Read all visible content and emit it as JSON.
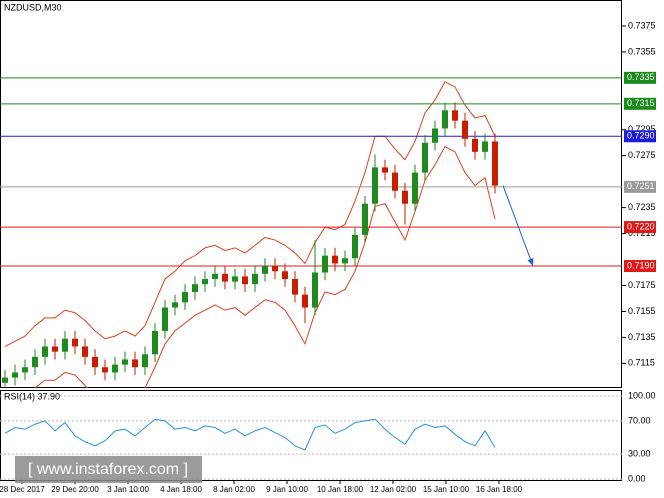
{
  "header": {
    "watermark": "[  www.instaforex.com  ]"
  },
  "chart_data": [
    {
      "type": "candlestick",
      "title": "NZDUSD,M30",
      "x_labels": [
        "28 Dec 2017",
        "29 Dec 20:00",
        "3 Jan 10:00",
        "4 Jan 18:00",
        "8 Jan 02:00",
        "9 Jan 10:00",
        "10 Jan 18:00",
        "12 Jan 02:00",
        "15 Jan 10:00",
        "16 Jan 18:00"
      ],
      "open": [
        0.71,
        0.7104,
        0.7108,
        0.7112,
        0.712,
        0.7128,
        0.7124,
        0.7134,
        0.7128,
        0.712,
        0.7112,
        0.7108,
        0.7114,
        0.7118,
        0.7112,
        0.7122,
        0.714,
        0.7158,
        0.7162,
        0.717,
        0.7176,
        0.718,
        0.7184,
        0.7178,
        0.7182,
        0.7176,
        0.7184,
        0.719,
        0.7186,
        0.718,
        0.7168,
        0.7158,
        0.7185,
        0.7198,
        0.7192,
        0.7196,
        0.7214,
        0.7238,
        0.7266,
        0.7262,
        0.7248,
        0.7238,
        0.7262,
        0.7285,
        0.7296,
        0.731,
        0.7302,
        0.7288,
        0.7278,
        0.7286
      ],
      "high": [
        0.711,
        0.7114,
        0.7118,
        0.7126,
        0.7134,
        0.7134,
        0.714,
        0.714,
        0.7134,
        0.7126,
        0.7118,
        0.712,
        0.7124,
        0.7124,
        0.7128,
        0.7146,
        0.7164,
        0.7168,
        0.7176,
        0.7182,
        0.7186,
        0.719,
        0.719,
        0.7188,
        0.7188,
        0.719,
        0.7196,
        0.7196,
        0.7192,
        0.7186,
        0.7174,
        0.721,
        0.7204,
        0.7204,
        0.7202,
        0.722,
        0.7244,
        0.7276,
        0.7272,
        0.7268,
        0.7254,
        0.7268,
        0.7291,
        0.7302,
        0.7316,
        0.7316,
        0.7308,
        0.7294,
        0.7292,
        0.7292
      ],
      "low": [
        0.7097,
        0.7098,
        0.7102,
        0.7106,
        0.7114,
        0.7118,
        0.7118,
        0.7122,
        0.7114,
        0.7106,
        0.7102,
        0.7102,
        0.7108,
        0.7106,
        0.7106,
        0.7116,
        0.7134,
        0.7152,
        0.7156,
        0.7164,
        0.717,
        0.7174,
        0.7172,
        0.7172,
        0.717,
        0.717,
        0.7178,
        0.718,
        0.7174,
        0.7162,
        0.7146,
        0.7152,
        0.7179,
        0.7186,
        0.7186,
        0.719,
        0.7208,
        0.7232,
        0.7256,
        0.7242,
        0.7222,
        0.7232,
        0.7256,
        0.7279,
        0.729,
        0.7296,
        0.7282,
        0.7272,
        0.7272,
        0.7246
      ],
      "close": [
        0.7104,
        0.7108,
        0.7112,
        0.712,
        0.7128,
        0.7124,
        0.7134,
        0.7128,
        0.712,
        0.7112,
        0.7108,
        0.7114,
        0.7118,
        0.7112,
        0.7122,
        0.714,
        0.7158,
        0.7162,
        0.717,
        0.7176,
        0.718,
        0.7184,
        0.7178,
        0.7182,
        0.7176,
        0.7184,
        0.719,
        0.7186,
        0.718,
        0.7168,
        0.7158,
        0.7185,
        0.7198,
        0.7192,
        0.7196,
        0.7214,
        0.7238,
        0.7266,
        0.7262,
        0.7248,
        0.7238,
        0.7262,
        0.7285,
        0.7296,
        0.731,
        0.7302,
        0.7288,
        0.7278,
        0.7286,
        0.7252
      ],
      "colors": {
        "up": "#1f8a1f",
        "down": "#c81e00"
      },
      "bands": {
        "color": "#e0401a",
        "upper": [
          0.7128,
          0.7132,
          0.7136,
          0.7144,
          0.715,
          0.715,
          0.7156,
          0.7154,
          0.7148,
          0.714,
          0.7134,
          0.7136,
          0.714,
          0.7136,
          0.7144,
          0.7162,
          0.718,
          0.7186,
          0.7194,
          0.7198,
          0.7204,
          0.7206,
          0.7202,
          0.7204,
          0.72,
          0.7206,
          0.7212,
          0.721,
          0.7206,
          0.72,
          0.7192,
          0.7208,
          0.722,
          0.7218,
          0.7222,
          0.724,
          0.7262,
          0.729,
          0.729,
          0.728,
          0.7272,
          0.7286,
          0.7308,
          0.7318,
          0.7332,
          0.7328,
          0.7314,
          0.7304,
          0.7306,
          0.729
        ],
        "lower": [
          0.708,
          0.7084,
          0.7088,
          0.7096,
          0.7102,
          0.7102,
          0.7108,
          0.7106,
          0.7098,
          0.709,
          0.7086,
          0.709,
          0.7094,
          0.709,
          0.7096,
          0.7112,
          0.713,
          0.714,
          0.7146,
          0.7152,
          0.7156,
          0.716,
          0.7156,
          0.7158,
          0.7152,
          0.7158,
          0.7164,
          0.7162,
          0.7156,
          0.7144,
          0.713,
          0.7154,
          0.717,
          0.7168,
          0.7172,
          0.7186,
          0.7208,
          0.7236,
          0.7238,
          0.7224,
          0.721,
          0.7232,
          0.7256,
          0.7268,
          0.7282,
          0.7278,
          0.7262,
          0.7252,
          0.7258,
          0.7226
        ]
      },
      "ylim": [
        0.7096,
        0.7395
      ],
      "yticks": [
        0.7375,
        0.7355,
        0.7295,
        0.7275,
        0.7235,
        0.7215,
        0.7175,
        0.7155,
        0.7135,
        0.7115
      ],
      "levels": [
        {
          "value": 0.7335,
          "label": "0.7335",
          "color": "#1a8a1a"
        },
        {
          "value": 0.7315,
          "label": "0.7315",
          "color": "#1a8a1a"
        },
        {
          "value": 0.729,
          "label": "0.7290",
          "color": "#1c1cd8"
        },
        {
          "value": 0.7251,
          "label": "0.7251",
          "color": "#9a9a9a"
        },
        {
          "value": 0.722,
          "label": "0.7220",
          "color": "#e01818"
        },
        {
          "value": 0.719,
          "label": "0.7190",
          "color": "#e01818"
        }
      ],
      "forecast_color": "#1c5fd8"
    },
    {
      "type": "line",
      "title": "RSI(14) 37.90",
      "color": "#2a8fe8",
      "values": [
        55,
        62,
        60,
        66,
        70,
        58,
        68,
        52,
        45,
        40,
        46,
        58,
        60,
        52,
        62,
        72,
        70,
        60,
        62,
        58,
        64,
        62,
        55,
        60,
        52,
        58,
        62,
        56,
        50,
        40,
        35,
        62,
        65,
        55,
        60,
        68,
        70,
        72,
        60,
        50,
        42,
        60,
        66,
        62,
        64,
        54,
        45,
        40,
        58,
        37.9
      ],
      "ylim": [
        0,
        100
      ],
      "yticks": [
        {
          "value": 100,
          "label": "100.00"
        },
        {
          "value": 70,
          "label": "70.00"
        },
        {
          "value": 30,
          "label": "30.00"
        },
        {
          "value": 0,
          "label": "0.00"
        }
      ]
    }
  ]
}
